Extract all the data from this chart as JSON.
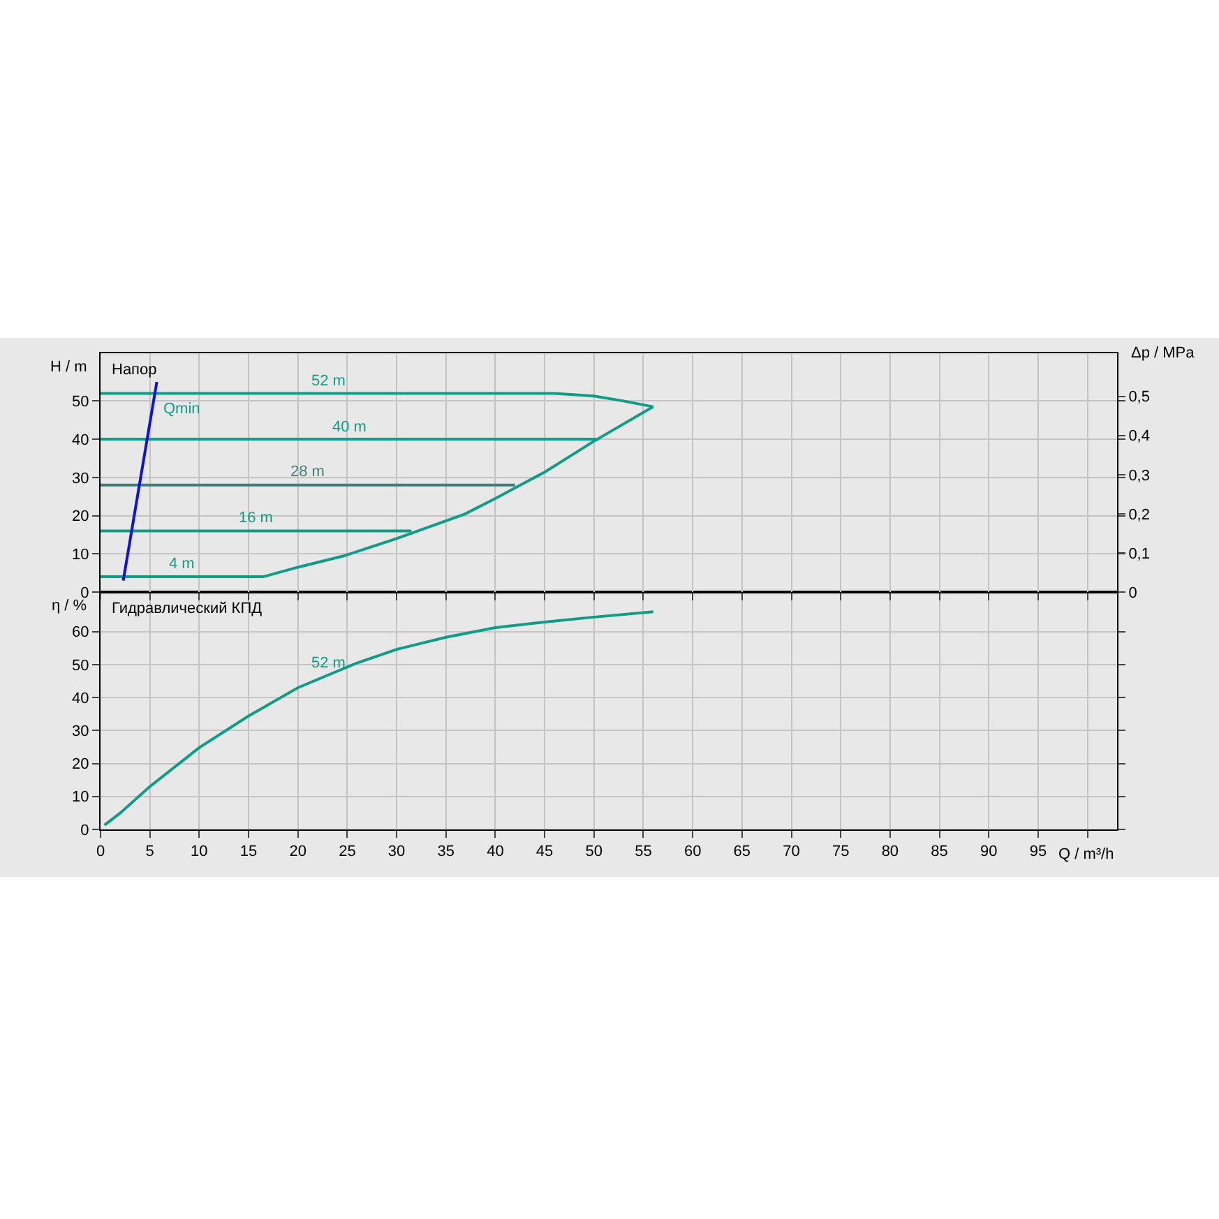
{
  "chart_data": [
    {
      "type": "line",
      "title": "Напор",
      "ylabel": "H / m",
      "y2label": "Δp / MPa",
      "xlim": [
        0,
        103
      ],
      "xticks": [
        0,
        5,
        10,
        15,
        20,
        25,
        30,
        35,
        40,
        45,
        50,
        55,
        60,
        65,
        70,
        75,
        80,
        85,
        90,
        95,
        {
          "value": 100,
          "label": null
        }
      ],
      "ylim": [
        0,
        62.5
      ],
      "yticks": [
        0,
        10,
        20,
        30,
        40,
        50
      ],
      "y2lim": [
        0,
        0.61
      ],
      "y2ticks": [
        0,
        {
          "value": 0.1,
          "label": "0,1"
        },
        {
          "value": 0.2,
          "label": "0,2"
        },
        {
          "value": 0.3,
          "label": "0,3"
        },
        {
          "value": 0.4,
          "label": "0,4"
        },
        {
          "value": 0.5,
          "label": "0,5"
        }
      ],
      "tick_labels": "y",
      "grid": true,
      "legend": false,
      "line_style": "solid",
      "marker": "none",
      "series": [
        {
          "name": "52 m",
          "color": "#109c86",
          "x": [
            0,
            46,
            50,
            53,
            56
          ],
          "values": [
            52,
            52,
            51.3,
            50,
            48.5
          ]
        },
        {
          "name": "40 m",
          "color": "#109c86",
          "x": [
            0,
            50.5
          ],
          "values": [
            40,
            40
          ]
        },
        {
          "name": "28 m",
          "color": "#3f7f78",
          "x": [
            0,
            42
          ],
          "values": [
            28,
            28
          ]
        },
        {
          "name": "16 m",
          "color": "#109c86",
          "x": [
            0,
            31.5
          ],
          "values": [
            16,
            16
          ]
        },
        {
          "name": "4 m",
          "color": "#109c86",
          "x": [
            0,
            16.5,
            20,
            24.7,
            30,
            36.9,
            40,
            45,
            50,
            56
          ],
          "values": [
            4,
            4,
            6.5,
            9.5,
            14,
            20.4,
            24.5,
            31.4,
            39.5,
            48.5
          ]
        },
        {
          "color": "#1010e0",
          "x": [
            2.3,
            5.7
          ],
          "values": [
            3,
            55
          ]
        }
      ],
      "annotations": [
        {
          "text": "Qmin",
          "x": 5.7,
          "y": 52
        }
      ]
    },
    {
      "type": "line",
      "title": "Гидравлический КПД",
      "ylabel": "η / %",
      "xlabel": "Q / m³/h",
      "xlim": [
        0,
        103
      ],
      "xticks": [
        0,
        5,
        10,
        15,
        20,
        25,
        30,
        35,
        40,
        45,
        50,
        55,
        60,
        65,
        70,
        75,
        80,
        85,
        90,
        95,
        {
          "value": 100,
          "label": null
        }
      ],
      "ylim": [
        0,
        72
      ],
      "yticks": [
        0,
        10,
        20,
        30,
        40,
        50,
        60
      ],
      "grid": true,
      "legend": false,
      "line_style": "solid",
      "marker": "none",
      "series": [
        {
          "name": "52 m",
          "color": "#109c86",
          "x": [
            0.4,
            2,
            5,
            10,
            15,
            20,
            26,
            30,
            35,
            40,
            45,
            50,
            56
          ],
          "values": [
            1.3,
            5,
            13,
            24.8,
            34.4,
            43,
            50.5,
            54.6,
            58.3,
            61.2,
            62.9,
            64.4,
            66
          ]
        }
      ]
    }
  ]
}
